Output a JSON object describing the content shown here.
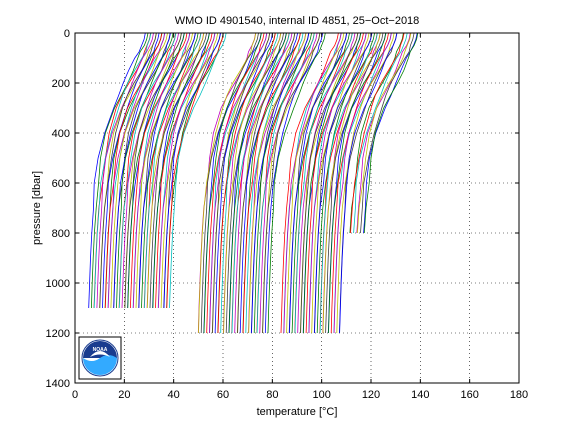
{
  "chart_data": {
    "type": "line",
    "title": "WMO ID 4901540, internal ID 4851, 25−Oct−2018",
    "xlabel": "temperature [°C]",
    "ylabel": "pressure [dbar]",
    "xlim": [
      0,
      180
    ],
    "ylim": [
      1400,
      0
    ],
    "y_reversed": true,
    "xticks": [
      0,
      20,
      40,
      60,
      80,
      100,
      120,
      140,
      160,
      180
    ],
    "yticks": [
      0,
      200,
      400,
      600,
      800,
      1000,
      1200,
      1400
    ],
    "grid": true,
    "grid_style": "dotted",
    "description_note": "Waterfall plot of many temperature profiles, each successive profile offset in x",
    "profile_groups": [
      {
        "count": 46,
        "offset_start": 0,
        "offset_step": 0.72,
        "max_pressure": 1100
      },
      {
        "count": 40,
        "offset_start": 44,
        "offset_step": 0.72,
        "max_pressure": 1200
      },
      {
        "count": 34,
        "offset_start": 78,
        "offset_step": 0.72,
        "max_pressure": 1200
      },
      {
        "count": 8,
        "offset_start": 104,
        "offset_step": 0.9,
        "max_pressure": 850
      }
    ],
    "profile_shape": {
      "pressure": [
        0,
        25,
        50,
        75,
        100,
        150,
        200,
        250,
        300,
        400,
        500,
        600,
        700,
        800,
        900,
        1000,
        1100,
        1200
      ],
      "temperature": [
        29,
        28.5,
        27.5,
        26.4,
        25.2,
        22.8,
        20.2,
        17.8,
        15.6,
        12.3,
        10.2,
        8.9,
        8.0,
        7.3,
        6.8,
        6.4,
        6.05,
        5.75
      ]
    },
    "series_colors": [
      "#0000ff",
      "#007f00",
      "#ff0000",
      "#00bfbf",
      "#bf00bf",
      "#bfbf00",
      "#3f3f3f"
    ],
    "logo": {
      "name": "noaa-logo",
      "text": "NOAA"
    }
  }
}
